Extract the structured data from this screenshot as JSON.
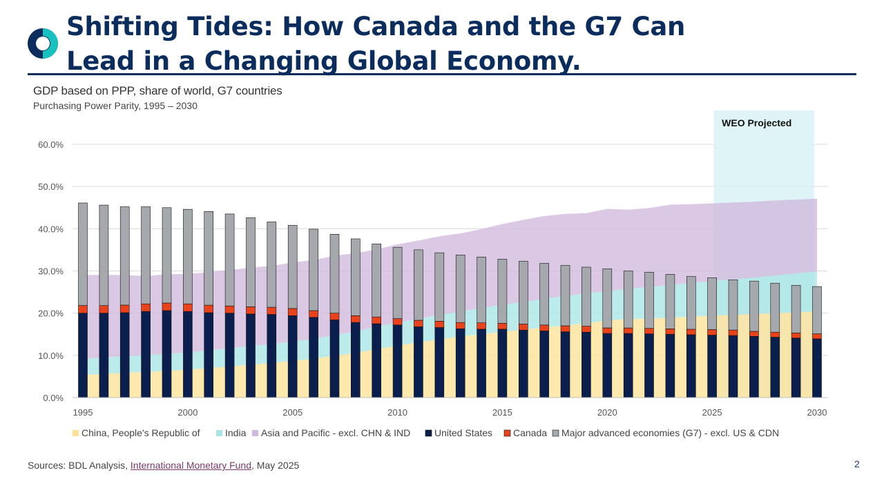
{
  "slide": {
    "title_line1": "Shifting Tides: How Canada and the G7 Can",
    "title_line2": "Lead in a Changing Global Economy.",
    "page_number": "2",
    "logo_icon": "circle-ring-logo-icon"
  },
  "source": {
    "prefix": "Sources: BDL Analysis, ",
    "link_text": "International Monetary Fund",
    "suffix": ", May 2025"
  },
  "chart_data": {
    "type": "bar",
    "title": "GDP based on PPP, share of world, G7 countries",
    "subtitle": "Purchasing Power Parity, 1995 – 2030",
    "projection_label": "WEO Projected",
    "projection_start": 2025,
    "projection_end": 2030,
    "x": [
      1995,
      1996,
      1997,
      1998,
      1999,
      2000,
      2001,
      2002,
      2003,
      2004,
      2005,
      2006,
      2007,
      2008,
      2009,
      2010,
      2011,
      2012,
      2013,
      2014,
      2015,
      2016,
      2017,
      2018,
      2019,
      2020,
      2021,
      2022,
      2023,
      2024,
      2025,
      2026,
      2027,
      2028,
      2029,
      2030
    ],
    "x_ticks": [
      "1995",
      "2000",
      "2005",
      "2010",
      "2015",
      "2020",
      "2025",
      "2030"
    ],
    "y_ticks": [
      "0.0%",
      "10.0%",
      "20.0%",
      "30.0%",
      "40.0%",
      "50.0%",
      "60.0%"
    ],
    "ylim": [
      0,
      60
    ],
    "grid": true,
    "legend_position": "bottom",
    "colors": {
      "China": "#fde196",
      "India": "#a9e5e6",
      "AsiaPacific": "#cfb9dc",
      "UnitedStates": "#0b1f4f",
      "Canada": "#e8431c",
      "G7Other": "#a5a8ad",
      "projection": "#d9f2f4"
    },
    "area_series": [
      {
        "name": "China, People's Republic of",
        "color_key": "China",
        "values": [
          5.4,
          5.6,
          5.9,
          6.1,
          6.3,
          6.6,
          7.0,
          7.4,
          7.8,
          8.2,
          8.7,
          9.2,
          9.9,
          10.6,
          11.5,
          12.3,
          13.1,
          13.8,
          14.5,
          15.0,
          15.6,
          16.1,
          16.6,
          17.1,
          17.6,
          18.3,
          18.6,
          18.7,
          18.9,
          19.2,
          19.4,
          19.6,
          19.8,
          20.0,
          20.2,
          20.4
        ]
      },
      {
        "name": "India",
        "color_key": "India",
        "values": [
          3.8,
          3.9,
          3.9,
          4.0,
          4.1,
          4.1,
          4.2,
          4.3,
          4.4,
          4.5,
          4.6,
          4.7,
          4.9,
          5.0,
          5.3,
          5.5,
          5.6,
          5.8,
          5.9,
          6.2,
          6.4,
          6.6,
          6.8,
          7.0,
          7.1,
          6.9,
          7.2,
          7.5,
          7.8,
          8.0,
          8.2,
          8.4,
          8.6,
          8.9,
          9.2,
          9.5
        ]
      },
      {
        "name": "Asia and Pacific - excl. CHN & IND",
        "color_key": "AsiaPacific",
        "values": [
          19.8,
          19.6,
          19.2,
          18.7,
          18.8,
          18.6,
          18.5,
          18.5,
          18.6,
          18.5,
          18.7,
          18.7,
          18.8,
          18.6,
          18.3,
          18.5,
          18.5,
          18.6,
          18.5,
          18.7,
          19.1,
          19.4,
          19.6,
          19.4,
          19.0,
          19.5,
          18.7,
          18.7,
          19.0,
          18.6,
          18.4,
          18.2,
          18.0,
          17.8,
          17.5,
          17.2
        ]
      }
    ],
    "bar_series": [
      {
        "name": "United States",
        "color_key": "UnitedStates",
        "values": [
          20.0,
          20.0,
          20.1,
          20.4,
          20.6,
          20.4,
          20.1,
          20.0,
          19.8,
          19.7,
          19.4,
          19.0,
          18.4,
          17.8,
          17.5,
          17.2,
          16.8,
          16.6,
          16.3,
          16.2,
          16.2,
          16.0,
          15.8,
          15.6,
          15.5,
          15.2,
          15.2,
          15.1,
          15.0,
          14.9,
          14.8,
          14.7,
          14.5,
          14.3,
          14.1,
          13.9
        ]
      },
      {
        "name": "Canada",
        "color_key": "Canada",
        "values": [
          1.8,
          1.8,
          1.8,
          1.8,
          1.8,
          1.8,
          1.8,
          1.7,
          1.7,
          1.7,
          1.7,
          1.6,
          1.6,
          1.6,
          1.6,
          1.5,
          1.5,
          1.5,
          1.5,
          1.5,
          1.4,
          1.4,
          1.4,
          1.4,
          1.4,
          1.3,
          1.3,
          1.3,
          1.3,
          1.3,
          1.3,
          1.3,
          1.2,
          1.2,
          1.2,
          1.2
        ]
      },
      {
        "name": "Major advanced economies (G7) - excl. US & CDN",
        "color_key": "G7Other",
        "values": [
          24.3,
          23.8,
          23.3,
          23.0,
          22.6,
          22.4,
          22.2,
          21.8,
          21.1,
          20.2,
          19.7,
          19.3,
          18.7,
          18.2,
          17.3,
          16.9,
          16.7,
          16.2,
          16.0,
          15.6,
          15.2,
          14.9,
          14.6,
          14.3,
          14.0,
          14.0,
          13.5,
          13.3,
          12.9,
          12.5,
          12.3,
          11.9,
          11.9,
          11.6,
          11.3,
          11.2
        ]
      }
    ],
    "legend_order": [
      "China",
      "India",
      "AsiaPacific",
      "UnitedStates",
      "Canada",
      "G7Other"
    ],
    "legend_labels": {
      "China": "China, People's Republic of",
      "India": "India",
      "AsiaPacific": "Asia and Pacific - excl. CHN & IND",
      "UnitedStates": "United States",
      "Canada": "Canada",
      "G7Other": "Major advanced economies (G7) - excl. US & CDN"
    }
  }
}
